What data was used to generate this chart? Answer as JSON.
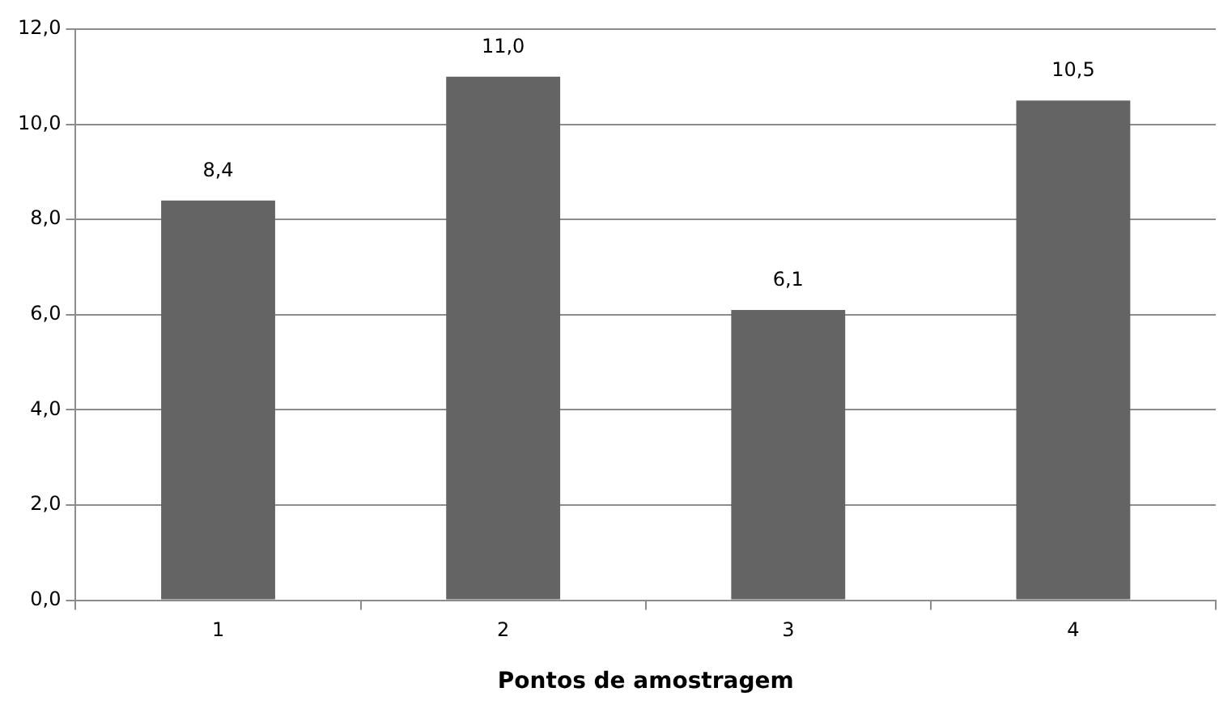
{
  "chart_data": {
    "type": "bar",
    "xlabel": "Pontos de amostragem",
    "categories": [
      "1",
      "2",
      "3",
      "4"
    ],
    "values": [
      8.4,
      11.0,
      6.1,
      10.5
    ],
    "value_labels": [
      "8,4",
      "11,0",
      "6,1",
      "10,5"
    ],
    "color": "#646464",
    "ylim": [
      0,
      12
    ],
    "yticks": [
      {
        "value": 0,
        "label": "0,0"
      },
      {
        "value": 2,
        "label": "2,0"
      },
      {
        "value": 4,
        "label": "4,0"
      },
      {
        "value": 6,
        "label": "6,0"
      },
      {
        "value": 8,
        "label": "8,0"
      },
      {
        "value": 10,
        "label": "10,0"
      },
      {
        "value": 12,
        "label": "12,0"
      }
    ],
    "grid": "y",
    "legend": false
  }
}
